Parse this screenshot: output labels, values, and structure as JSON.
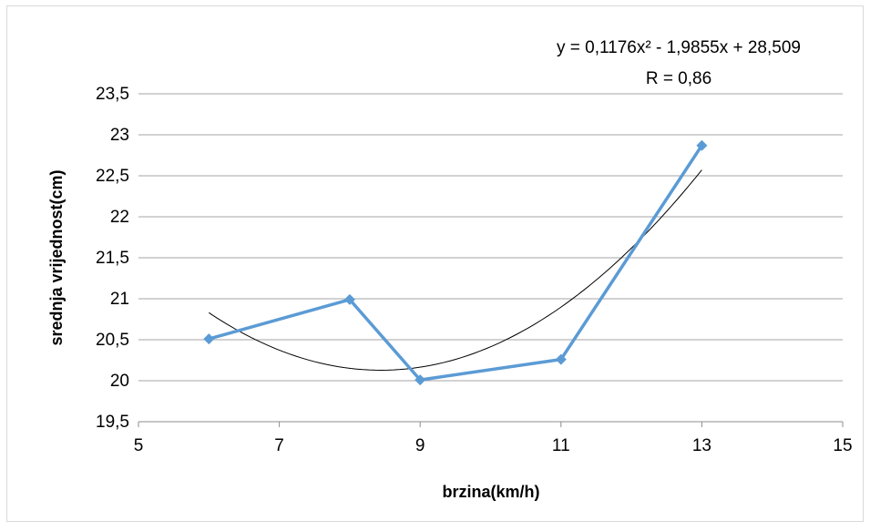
{
  "chart_data": {
    "type": "scatter",
    "title": "",
    "xlabel": "brzina(km/h)",
    "ylabel": "srednja vrijednost(cm)",
    "xlim": [
      5,
      15
    ],
    "ylim": [
      19.5,
      23.5
    ],
    "x_ticks": [
      "5",
      "7",
      "9",
      "11",
      "13",
      "15"
    ],
    "y_ticks": [
      "19,5",
      "20",
      "20,5",
      "21",
      "21,5",
      "22",
      "22,5",
      "23",
      "23,5"
    ],
    "grid": "horizontal",
    "legend": "none",
    "series": [
      {
        "x": [
          6,
          8,
          9,
          11,
          13
        ],
        "y": [
          20.51,
          20.99,
          20.01,
          20.26,
          22.87
        ],
        "color": "#5b9bd5",
        "marker": "diamond"
      }
    ],
    "trendline": {
      "type": "polynomial",
      "order": 2,
      "coefficients": [
        0.1176,
        -1.9855,
        28.509
      ],
      "x_range": [
        6,
        13
      ],
      "color": "#000000",
      "equation_label": "y = 0,1176x² - 1,9855x + 28,509",
      "r_label": "R = 0,86"
    }
  }
}
